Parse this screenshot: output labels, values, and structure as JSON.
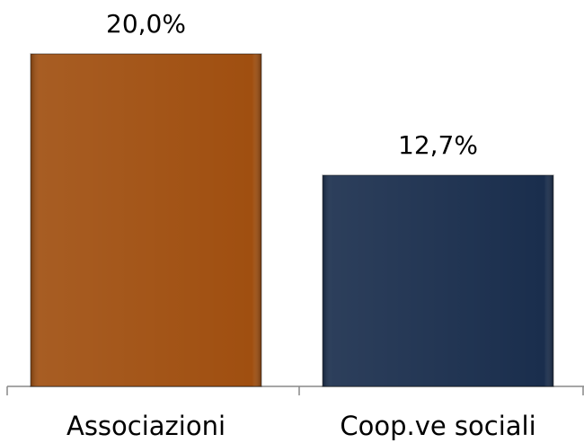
{
  "chart_data": {
    "type": "bar",
    "categories": [
      "Associazioni",
      "Coop.ve sociali"
    ],
    "values": [
      20.0,
      12.7
    ],
    "value_labels": [
      "20,0%",
      "12,7%"
    ],
    "colors": [
      "#a04f10",
      "#1a2e4d"
    ]
  }
}
